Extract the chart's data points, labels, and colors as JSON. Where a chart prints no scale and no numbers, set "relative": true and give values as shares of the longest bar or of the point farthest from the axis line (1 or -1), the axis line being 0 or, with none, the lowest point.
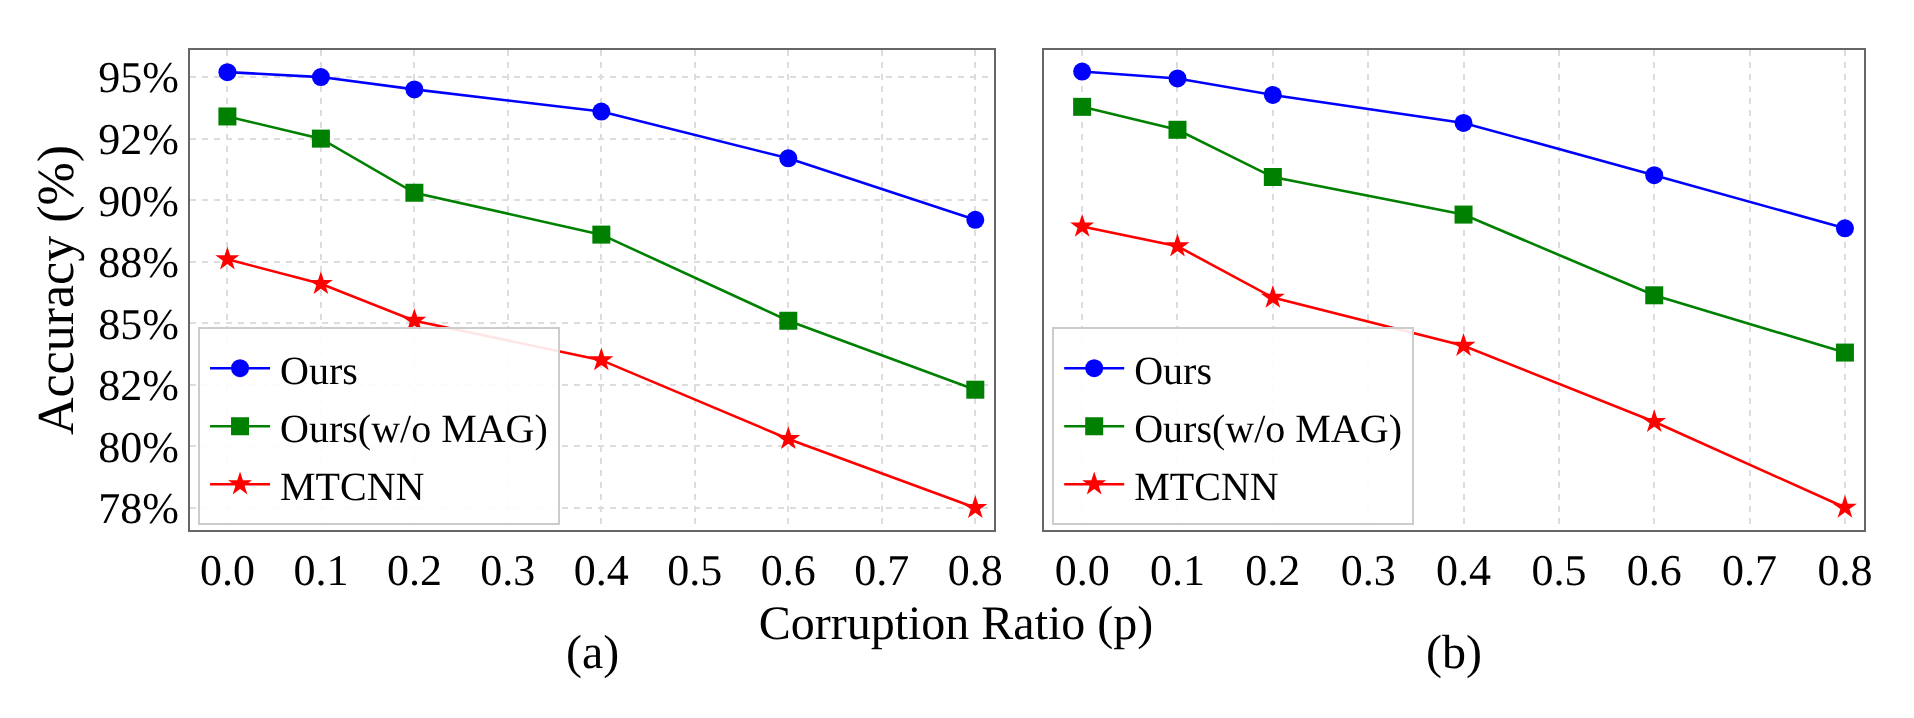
{
  "chart_data": [
    {
      "type": "line",
      "ylabel": "Accuracy (%)",
      "xlabel": "Corruption Ratio (p)",
      "annotations": [
        "(a)"
      ],
      "x": [
        0,
        0.1,
        0.2,
        0.4,
        0.6,
        0.8
      ],
      "series": [
        {
          "name": "Ours",
          "color": "#0000ff",
          "marker": "circle",
          "values": [
            95.2,
            95.0,
            94.5,
            93.6,
            91.7,
            89.2
          ]
        },
        {
          "name": "Ours(w/o MAG)",
          "color": "#008000",
          "marker": "square",
          "values": [
            93.4,
            92.5,
            90.3,
            88.6,
            85.1,
            82.3
          ]
        },
        {
          "name": "MTCNN",
          "color": "#ff0000",
          "marker": "star",
          "values": [
            87.6,
            86.6,
            85.1,
            83.5,
            80.3,
            77.5
          ]
        }
      ],
      "xlim": [
        -0.04,
        0.82
      ],
      "xticks": [
        {
          "value": 0,
          "label": "0.0"
        },
        {
          "value": 0.1,
          "label": "0.1"
        },
        {
          "value": 0.2,
          "label": "0.2"
        },
        {
          "value": 0.3,
          "label": "0.3"
        },
        {
          "value": 0.4,
          "label": "0.4"
        },
        {
          "value": 0.5,
          "label": "0.5"
        },
        {
          "value": 0.6,
          "label": "0.6"
        },
        {
          "value": 0.7,
          "label": "0.7"
        },
        {
          "value": 0.8,
          "label": "0.8"
        }
      ],
      "ylim": [
        76.6,
        96.1
      ],
      "yticks": [
        {
          "value": 77.5,
          "label": "78%"
        },
        {
          "value": 80,
          "label": "80%"
        },
        {
          "value": 82.5,
          "label": "82%"
        },
        {
          "value": 85,
          "label": "85%"
        },
        {
          "value": 87.5,
          "label": "88%"
        },
        {
          "value": 90,
          "label": "90%"
        },
        {
          "value": 92.5,
          "label": "92%"
        },
        {
          "value": 95,
          "label": "95%"
        }
      ],
      "grid": true,
      "legend": "bottom left",
      "line_style": "solid"
    },
    {
      "type": "line",
      "relative": true,
      "annotations": [
        "(b)"
      ],
      "x": [
        0,
        0.1,
        0.2,
        0.4,
        0.6,
        0.8
      ],
      "series": [
        {
          "name": "Ours",
          "color": "#0000ff",
          "marker": "circle",
          "values": [
            1,
            0.985,
            0.949,
            0.888,
            0.774,
            0.658
          ]
        },
        {
          "name": "Ours(w/o MAG)",
          "color": "#008000",
          "marker": "square",
          "values": [
            0.923,
            0.873,
            0.77,
            0.688,
            0.512,
            0.387
          ]
        },
        {
          "name": "MTCNN",
          "color": "#ff0000",
          "marker": "star",
          "values": [
            0.662,
            0.619,
            0.507,
            0.402,
            0.236,
            0.049
          ]
        }
      ],
      "xlim": [
        -0.04,
        0.82
      ],
      "xticks": [
        {
          "value": 0,
          "label": "0.0"
        },
        {
          "value": 0.1,
          "label": "0.1"
        },
        {
          "value": 0.2,
          "label": "0.2"
        },
        {
          "value": 0.3,
          "label": "0.3"
        },
        {
          "value": 0.4,
          "label": "0.4"
        },
        {
          "value": 0.5,
          "label": "0.5"
        },
        {
          "value": 0.6,
          "label": "0.6"
        },
        {
          "value": 0.7,
          "label": "0.7"
        },
        {
          "value": 0.8,
          "label": "0.8"
        }
      ],
      "grid": "x",
      "legend": "bottom left",
      "line_style": "solid"
    }
  ]
}
